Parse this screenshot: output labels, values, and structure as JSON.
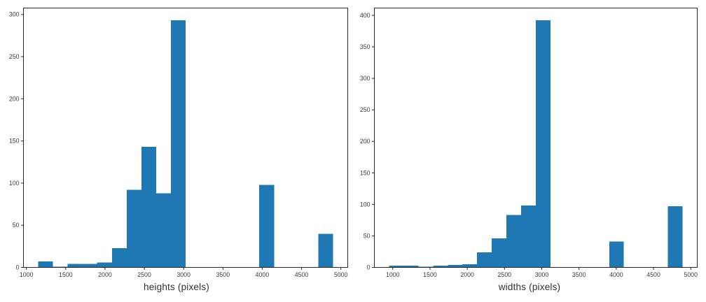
{
  "figure": {
    "background_color": "#ffffff",
    "bar_color": "#1f77b4",
    "axis_color": "#262626",
    "tick_label_color": "#3a3a3a"
  },
  "chart_data": [
    {
      "type": "bar",
      "subtype": "histogram",
      "title": "",
      "xlabel": "heights (pixels)",
      "ylabel": "",
      "grid": false,
      "legend": null,
      "xlim": [
        962.5,
        5087.5
      ],
      "ylim": [
        0,
        307.65
      ],
      "xticks": [
        1000,
        1500,
        2000,
        2500,
        3000,
        3500,
        4000,
        4500,
        5000
      ],
      "yticks": [
        0,
        50,
        100,
        150,
        200,
        250,
        300
      ],
      "bin_start": 1150,
      "bin_width": 187.5,
      "counts": [
        7,
        1,
        4,
        4,
        6,
        23,
        92,
        143,
        88,
        293,
        0,
        0,
        0,
        0,
        0,
        98,
        0,
        0,
        0,
        40
      ]
    },
    {
      "type": "bar",
      "subtype": "histogram",
      "title": "",
      "xlabel": "widths (pixels)",
      "ylabel": "",
      "grid": false,
      "legend": null,
      "xlim": [
        753,
        5087
      ],
      "ylim": [
        0,
        411.6
      ],
      "xticks": [
        1000,
        1500,
        2000,
        2500,
        3000,
        3500,
        4000,
        4500,
        5000
      ],
      "yticks": [
        0,
        50,
        100,
        150,
        200,
        250,
        300,
        350,
        400
      ],
      "bin_start": 950,
      "bin_width": 197,
      "counts": [
        3,
        3,
        1,
        3,
        4,
        5,
        24,
        46,
        83,
        98,
        392,
        0,
        0,
        0,
        0,
        41,
        0,
        0,
        0,
        97
      ]
    }
  ]
}
